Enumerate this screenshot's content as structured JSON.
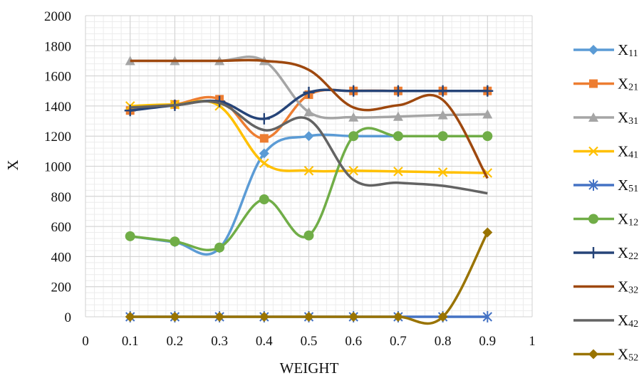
{
  "chart_data": {
    "type": "line",
    "title": "",
    "xlabel": "WEIGHT",
    "ylabel": "X",
    "xlim": [
      0,
      1
    ],
    "ylim": [
      0,
      2000
    ],
    "x_ticks": [
      "0",
      "0.1",
      "0.2",
      "0.3",
      "0.4",
      "0.5",
      "0.6",
      "0.7",
      "0.8",
      "0.9",
      "1"
    ],
    "y_ticks": [
      "0",
      "200",
      "400",
      "600",
      "800",
      "1000",
      "1200",
      "1400",
      "1600",
      "1800",
      "2000"
    ],
    "grid": true,
    "legend_position": "right",
    "x": [
      0.1,
      0.2,
      0.3,
      0.4,
      0.5,
      0.6,
      0.7,
      0.8,
      0.9
    ],
    "series": [
      {
        "name": "X",
        "sub": "11",
        "color": "#5B9BD5",
        "marker": "diamond",
        "values": [
          535,
          495,
          455,
          1085,
          1200,
          1200,
          1200,
          1200,
          1200
        ]
      },
      {
        "name": "X",
        "sub": "21",
        "color": "#ED7D31",
        "marker": "square",
        "values": [
          1370,
          1410,
          1445,
          1185,
          1475,
          1500,
          1500,
          1500,
          1500
        ]
      },
      {
        "name": "X",
        "sub": "31",
        "color": "#A5A5A5",
        "marker": "triangle",
        "values": [
          1700,
          1700,
          1700,
          1700,
          1360,
          1325,
          1330,
          1340,
          1345
        ]
      },
      {
        "name": "X",
        "sub": "41",
        "color": "#FFC000",
        "marker": "x",
        "values": [
          1400,
          1410,
          1400,
          1020,
          970,
          970,
          965,
          960,
          955
        ]
      },
      {
        "name": "X",
        "sub": "51",
        "color": "#4472C4",
        "marker": "star",
        "values": [
          0,
          0,
          0,
          0,
          0,
          0,
          0,
          0,
          0
        ]
      },
      {
        "name": "X",
        "sub": "12",
        "color": "#70AD47",
        "marker": "circle",
        "values": [
          535,
          500,
          460,
          780,
          540,
          1200,
          1200,
          1200,
          1200
        ]
      },
      {
        "name": "X",
        "sub": "22",
        "color": "#264478",
        "marker": "plus",
        "values": [
          1370,
          1405,
          1430,
          1315,
          1490,
          1500,
          1500,
          1500,
          1500
        ]
      },
      {
        "name": "X",
        "sub": "32",
        "color": "#9E480E",
        "marker": "none",
        "values": [
          1700,
          1700,
          1700,
          1700,
          1640,
          1390,
          1405,
          1440,
          920
        ]
      },
      {
        "name": "X",
        "sub": "42",
        "color": "#636363",
        "marker": "none",
        "values": [
          1390,
          1405,
          1420,
          1240,
          1310,
          910,
          890,
          870,
          820
        ]
      },
      {
        "name": "X",
        "sub": "52",
        "color": "#997300",
        "marker": "diamond",
        "values": [
          0,
          0,
          0,
          0,
          0,
          0,
          0,
          0,
          560
        ]
      }
    ]
  }
}
